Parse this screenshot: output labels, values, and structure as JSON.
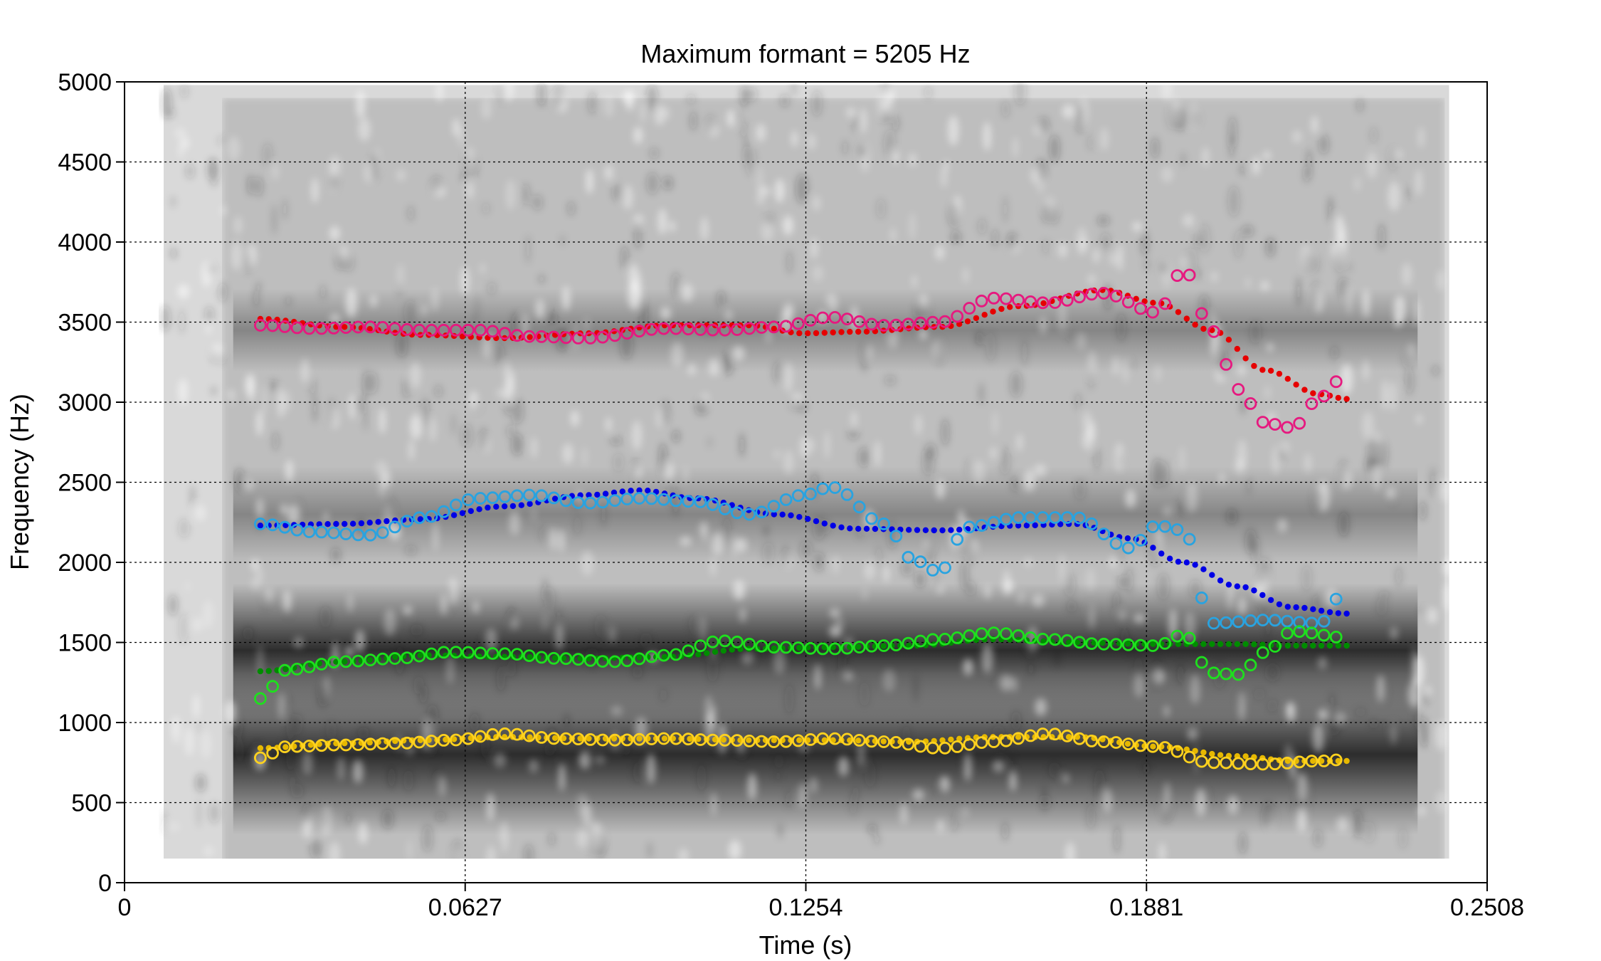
{
  "chart_data": {
    "type": "scatter",
    "title": "Maximum formant = 5205 Hz",
    "xlabel": "Time (s)",
    "ylabel": "Frequency (Hz)",
    "xlim": [
      0,
      0.2508
    ],
    "ylim": [
      0,
      5000
    ],
    "x_ticks": [
      "0",
      "0.0627",
      "0.1254",
      "0.1881",
      "0.2508"
    ],
    "y_ticks": [
      "0",
      "500",
      "1000",
      "1500",
      "2000",
      "2500",
      "3000",
      "3500",
      "4000",
      "4500",
      "5000"
    ],
    "grid": true,
    "background": "grayscale spectrogram",
    "series": [
      {
        "marker": "dot",
        "color": "#e60000",
        "x": [
          0.025,
          0.04,
          0.055,
          0.07,
          0.085,
          0.1,
          0.115,
          0.125,
          0.135,
          0.15,
          0.165,
          0.18,
          0.19,
          0.2,
          0.21,
          0.22,
          0.225
        ],
        "y": [
          3520,
          3470,
          3420,
          3400,
          3430,
          3480,
          3480,
          3430,
          3440,
          3470,
          3600,
          3700,
          3620,
          3450,
          3200,
          3050,
          3020
        ]
      },
      {
        "marker": "circle",
        "color": "#e6197f",
        "x": [
          0.025,
          0.035,
          0.045,
          0.055,
          0.065,
          0.075,
          0.085,
          0.1,
          0.11,
          0.12,
          0.13,
          0.14,
          0.15,
          0.16,
          0.17,
          0.18,
          0.19,
          0.195,
          0.2,
          0.205,
          0.21,
          0.215,
          0.22,
          0.225
        ],
        "y": [
          3480,
          3460,
          3470,
          3450,
          3450,
          3410,
          3400,
          3460,
          3450,
          3470,
          3530,
          3480,
          3500,
          3650,
          3620,
          3680,
          3560,
          3830,
          3450,
          3080,
          2870,
          2840,
          3030,
          3180
        ]
      },
      {
        "marker": "dot",
        "color": "#0000e6",
        "x": [
          0.025,
          0.04,
          0.055,
          0.07,
          0.085,
          0.095,
          0.105,
          0.12,
          0.135,
          0.15,
          0.165,
          0.175,
          0.185,
          0.195,
          0.205,
          0.215,
          0.225
        ],
        "y": [
          2230,
          2240,
          2270,
          2350,
          2420,
          2450,
          2400,
          2300,
          2210,
          2200,
          2230,
          2240,
          2150,
          2000,
          1850,
          1720,
          1680
        ]
      },
      {
        "marker": "circle",
        "color": "#29a3e0",
        "x": [
          0.025,
          0.035,
          0.045,
          0.055,
          0.065,
          0.075,
          0.085,
          0.095,
          0.105,
          0.115,
          0.125,
          0.13,
          0.14,
          0.145,
          0.15,
          0.155,
          0.165,
          0.175,
          0.185,
          0.19,
          0.195,
          0.2,
          0.21,
          0.22,
          0.225
        ],
        "y": [
          2240,
          2190,
          2170,
          2280,
          2400,
          2420,
          2370,
          2400,
          2380,
          2300,
          2420,
          2470,
          2240,
          2020,
          1940,
          2220,
          2280,
          2280,
          2090,
          2230,
          2200,
          1620,
          1640,
          1620,
          1850
        ]
      },
      {
        "marker": "dot",
        "color": "#008c00",
        "x": [
          0.025,
          0.04,
          0.055,
          0.07,
          0.085,
          0.1,
          0.115,
          0.13,
          0.145,
          0.16,
          0.175,
          0.19,
          0.205,
          0.215,
          0.225
        ],
        "y": [
          1320,
          1380,
          1420,
          1410,
          1400,
          1410,
          1460,
          1470,
          1480,
          1520,
          1500,
          1490,
          1490,
          1480,
          1480
        ]
      },
      {
        "marker": "circle",
        "color": "#1ee01e",
        "x": [
          0.025,
          0.03,
          0.04,
          0.05,
          0.06,
          0.07,
          0.08,
          0.09,
          0.1,
          0.11,
          0.12,
          0.13,
          0.14,
          0.15,
          0.16,
          0.17,
          0.18,
          0.19,
          0.195,
          0.2,
          0.205,
          0.21,
          0.215,
          0.225
        ],
        "y": [
          1150,
          1330,
          1380,
          1400,
          1440,
          1430,
          1400,
          1380,
          1420,
          1510,
          1470,
          1460,
          1480,
          1520,
          1560,
          1520,
          1490,
          1480,
          1550,
          1310,
          1300,
          1440,
          1570,
          1530
        ]
      },
      {
        "marker": "dot",
        "color": "#e6b800",
        "x": [
          0.025,
          0.04,
          0.055,
          0.07,
          0.085,
          0.1,
          0.115,
          0.13,
          0.145,
          0.16,
          0.175,
          0.19,
          0.205,
          0.215,
          0.225
        ],
        "y": [
          840,
          870,
          890,
          910,
          900,
          900,
          890,
          890,
          880,
          910,
          910,
          850,
          790,
          760,
          760
        ]
      },
      {
        "marker": "circle",
        "color": "#ffd21e",
        "x": [
          0.025,
          0.03,
          0.04,
          0.05,
          0.06,
          0.07,
          0.08,
          0.09,
          0.1,
          0.11,
          0.12,
          0.13,
          0.14,
          0.15,
          0.16,
          0.17,
          0.18,
          0.19,
          0.2,
          0.21,
          0.22,
          0.225
        ],
        "y": [
          780,
          850,
          860,
          870,
          890,
          930,
          900,
          890,
          900,
          890,
          880,
          900,
          880,
          840,
          880,
          930,
          880,
          850,
          750,
          740,
          760,
          770
        ]
      }
    ]
  }
}
